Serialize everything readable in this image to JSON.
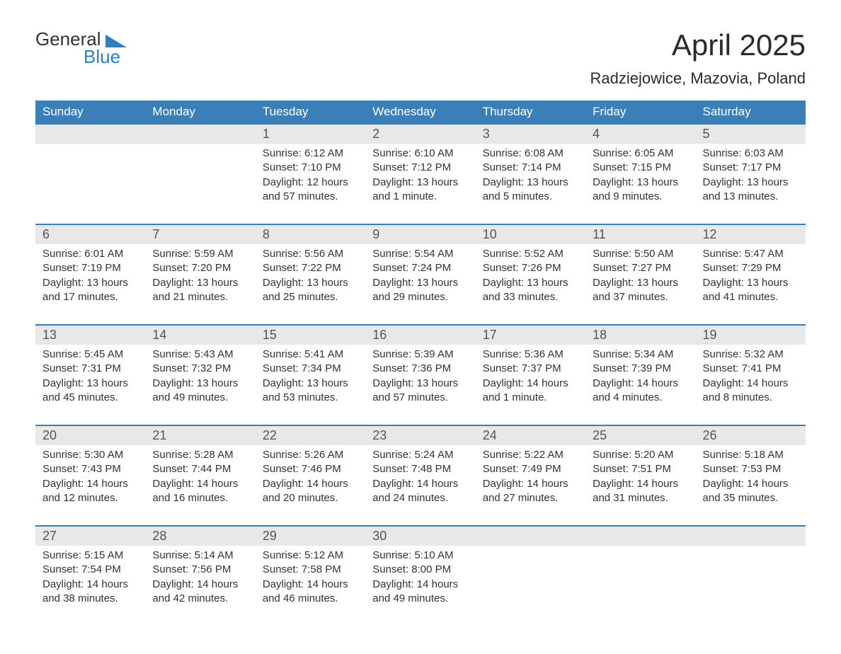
{
  "brand": {
    "part1": "General",
    "part2": "Blue"
  },
  "title": "April 2025",
  "location": "Radziejowice, Mazovia, Poland",
  "colors": {
    "header_bg": "#3a7fb8",
    "header_fg": "#ffffff",
    "daynum_bg": "#e8e8e8",
    "daynum_fg": "#555555",
    "body_text": "#333333",
    "week_border": "#3a7fb8",
    "brand_blue": "#2f7fbf"
  },
  "daysOfWeek": [
    "Sunday",
    "Monday",
    "Tuesday",
    "Wednesday",
    "Thursday",
    "Friday",
    "Saturday"
  ],
  "weeks": [
    [
      {
        "n": "",
        "sr": "",
        "ss": "",
        "dl": ""
      },
      {
        "n": "",
        "sr": "",
        "ss": "",
        "dl": ""
      },
      {
        "n": "1",
        "sr": "6:12 AM",
        "ss": "7:10 PM",
        "dl": "12 hours and 57 minutes."
      },
      {
        "n": "2",
        "sr": "6:10 AM",
        "ss": "7:12 PM",
        "dl": "13 hours and 1 minute."
      },
      {
        "n": "3",
        "sr": "6:08 AM",
        "ss": "7:14 PM",
        "dl": "13 hours and 5 minutes."
      },
      {
        "n": "4",
        "sr": "6:05 AM",
        "ss": "7:15 PM",
        "dl": "13 hours and 9 minutes."
      },
      {
        "n": "5",
        "sr": "6:03 AM",
        "ss": "7:17 PM",
        "dl": "13 hours and 13 minutes."
      }
    ],
    [
      {
        "n": "6",
        "sr": "6:01 AM",
        "ss": "7:19 PM",
        "dl": "13 hours and 17 minutes."
      },
      {
        "n": "7",
        "sr": "5:59 AM",
        "ss": "7:20 PM",
        "dl": "13 hours and 21 minutes."
      },
      {
        "n": "8",
        "sr": "5:56 AM",
        "ss": "7:22 PM",
        "dl": "13 hours and 25 minutes."
      },
      {
        "n": "9",
        "sr": "5:54 AM",
        "ss": "7:24 PM",
        "dl": "13 hours and 29 minutes."
      },
      {
        "n": "10",
        "sr": "5:52 AM",
        "ss": "7:26 PM",
        "dl": "13 hours and 33 minutes."
      },
      {
        "n": "11",
        "sr": "5:50 AM",
        "ss": "7:27 PM",
        "dl": "13 hours and 37 minutes."
      },
      {
        "n": "12",
        "sr": "5:47 AM",
        "ss": "7:29 PM",
        "dl": "13 hours and 41 minutes."
      }
    ],
    [
      {
        "n": "13",
        "sr": "5:45 AM",
        "ss": "7:31 PM",
        "dl": "13 hours and 45 minutes."
      },
      {
        "n": "14",
        "sr": "5:43 AM",
        "ss": "7:32 PM",
        "dl": "13 hours and 49 minutes."
      },
      {
        "n": "15",
        "sr": "5:41 AM",
        "ss": "7:34 PM",
        "dl": "13 hours and 53 minutes."
      },
      {
        "n": "16",
        "sr": "5:39 AM",
        "ss": "7:36 PM",
        "dl": "13 hours and 57 minutes."
      },
      {
        "n": "17",
        "sr": "5:36 AM",
        "ss": "7:37 PM",
        "dl": "14 hours and 1 minute."
      },
      {
        "n": "18",
        "sr": "5:34 AM",
        "ss": "7:39 PM",
        "dl": "14 hours and 4 minutes."
      },
      {
        "n": "19",
        "sr": "5:32 AM",
        "ss": "7:41 PM",
        "dl": "14 hours and 8 minutes."
      }
    ],
    [
      {
        "n": "20",
        "sr": "5:30 AM",
        "ss": "7:43 PM",
        "dl": "14 hours and 12 minutes."
      },
      {
        "n": "21",
        "sr": "5:28 AM",
        "ss": "7:44 PM",
        "dl": "14 hours and 16 minutes."
      },
      {
        "n": "22",
        "sr": "5:26 AM",
        "ss": "7:46 PM",
        "dl": "14 hours and 20 minutes."
      },
      {
        "n": "23",
        "sr": "5:24 AM",
        "ss": "7:48 PM",
        "dl": "14 hours and 24 minutes."
      },
      {
        "n": "24",
        "sr": "5:22 AM",
        "ss": "7:49 PM",
        "dl": "14 hours and 27 minutes."
      },
      {
        "n": "25",
        "sr": "5:20 AM",
        "ss": "7:51 PM",
        "dl": "14 hours and 31 minutes."
      },
      {
        "n": "26",
        "sr": "5:18 AM",
        "ss": "7:53 PM",
        "dl": "14 hours and 35 minutes."
      }
    ],
    [
      {
        "n": "27",
        "sr": "5:15 AM",
        "ss": "7:54 PM",
        "dl": "14 hours and 38 minutes."
      },
      {
        "n": "28",
        "sr": "5:14 AM",
        "ss": "7:56 PM",
        "dl": "14 hours and 42 minutes."
      },
      {
        "n": "29",
        "sr": "5:12 AM",
        "ss": "7:58 PM",
        "dl": "14 hours and 46 minutes."
      },
      {
        "n": "30",
        "sr": "5:10 AM",
        "ss": "8:00 PM",
        "dl": "14 hours and 49 minutes."
      },
      {
        "n": "",
        "sr": "",
        "ss": "",
        "dl": ""
      },
      {
        "n": "",
        "sr": "",
        "ss": "",
        "dl": ""
      },
      {
        "n": "",
        "sr": "",
        "ss": "",
        "dl": ""
      }
    ]
  ],
  "labels": {
    "sunrise": "Sunrise: ",
    "sunset": "Sunset: ",
    "daylight": "Daylight: "
  }
}
